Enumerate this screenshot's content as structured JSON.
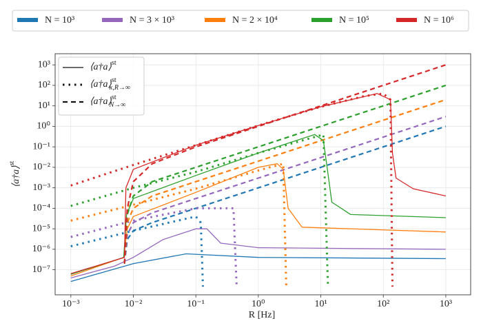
{
  "chart_data": {
    "type": "line",
    "x_label": "R [Hz]",
    "y_label": {
      "main": "⟨a†a⟩",
      "sup": "st"
    },
    "xscale": "log",
    "yscale": "log",
    "grid": true,
    "xlim": [
      0.00056,
      2500
    ],
    "ylim": [
      6e-09,
      3500
    ],
    "xticks": [
      {
        "value": 0.001,
        "label": "10⁻³"
      },
      {
        "value": 0.01,
        "label": "10⁻²"
      },
      {
        "value": 0.1,
        "label": "10⁻¹"
      },
      {
        "value": 1,
        "label": "10⁰"
      },
      {
        "value": 10,
        "label": "10¹"
      },
      {
        "value": 100,
        "label": "10²"
      },
      {
        "value": 1000,
        "label": "10³"
      }
    ],
    "yticks": [
      {
        "value": 1e-07,
        "label": "10⁻⁷"
      },
      {
        "value": 1e-06,
        "label": "10⁻⁶"
      },
      {
        "value": 1e-05,
        "label": "10⁻⁵"
      },
      {
        "value": 0.0001,
        "label": "10⁻⁴"
      },
      {
        "value": 0.001,
        "label": "10⁻³"
      },
      {
        "value": 0.01,
        "label": "10⁻²"
      },
      {
        "value": 0.1,
        "label": "10⁻¹"
      },
      {
        "value": 1,
        "label": "10⁰"
      },
      {
        "value": 10,
        "label": "10¹"
      },
      {
        "value": 100,
        "label": "10²"
      },
      {
        "value": 1000,
        "label": "10³"
      }
    ],
    "line_styles": [
      {
        "style": "solid",
        "main": "⟨a†a⟩",
        "sup": "st"
      },
      {
        "style": "dotted",
        "main": "⟨a†a⟩",
        "sup": "st",
        "sub": "κ,R→∞"
      },
      {
        "style": "dashed",
        "main": "⟨a†a⟩",
        "sup": "st",
        "sub": "N→∞"
      }
    ],
    "series": [
      {
        "name": "N = 10³",
        "color": "#1f77b4",
        "curves": [
          {
            "style": "solid",
            "x": [
              0.001,
              0.01,
              0.07,
              1,
              1000
            ],
            "values": [
              2.7e-08,
              2e-07,
              6e-07,
              4e-07,
              3.5e-07
            ]
          },
          {
            "style": "dotted",
            "x": [
              0.001,
              0.01,
              0.1,
              0.12,
              0.13
            ],
            "values": [
              1.4e-06,
              8e-06,
              4e-05,
              2e-05,
              1.5e-08
            ]
          },
          {
            "style": "dashed",
            "x": [
              0.0072,
              0.008,
              0.01,
              0.02,
              0.1,
              1,
              10,
              100,
              1000
            ],
            "values": [
              2e-07,
              3e-06,
              8e-06,
              2e-05,
              0.0001,
              0.001,
              0.01,
              0.1,
              1
            ]
          }
        ]
      },
      {
        "name": "N = 3 × 10³",
        "color": "#9467bd",
        "curves": [
          {
            "style": "solid",
            "x": [
              0.001,
              0.005,
              0.01,
              0.03,
              0.1,
              0.15,
              0.25,
              1,
              1000
            ],
            "values": [
              4e-08,
              1.5e-07,
              4e-07,
              3e-06,
              1e-05,
              1e-05,
              2e-06,
              1.2e-06,
              1e-06
            ]
          },
          {
            "style": "dotted",
            "x": [
              0.001,
              0.01,
              0.1,
              0.4,
              0.45
            ],
            "values": [
              4e-06,
              2.5e-05,
              0.0001,
              0.0001,
              1.5e-08
            ]
          },
          {
            "style": "dashed",
            "x": [
              0.0072,
              0.008,
              0.01,
              0.02,
              0.1,
              1,
              10,
              100,
              1000
            ],
            "values": [
              2e-07,
              5e-06,
              2e-05,
              6e-05,
              0.0003,
              0.003,
              0.03,
              0.3,
              3
            ]
          }
        ]
      },
      {
        "name": "N = 2 × 10⁴",
        "color": "#ff7f0e",
        "curves": [
          {
            "style": "solid",
            "x": [
              0.001,
              0.007,
              0.008,
              0.01,
              0.1,
              1,
              2,
              2.5,
              3,
              5,
              1000
            ],
            "values": [
              5e-08,
              4e-07,
              1e-05,
              4e-05,
              0.0006,
              0.01,
              0.015,
              0.008,
              0.0001,
              1.2e-05,
              7e-06
            ]
          },
          {
            "style": "dotted",
            "x": [
              0.001,
              0.01,
              0.1,
              1,
              2.5,
              2.8
            ],
            "values": [
              2.5e-05,
              0.00015,
              0.0009,
              0.007,
              0.015,
              1.5e-08
            ]
          },
          {
            "style": "dashed",
            "x": [
              0.0072,
              0.008,
              0.01,
              0.02,
              0.1,
              1,
              10,
              100,
              1000
            ],
            "values": [
              2e-07,
              2e-05,
              0.0001,
              0.0004,
              0.002,
              0.02,
              0.2,
              2,
              20
            ]
          }
        ]
      },
      {
        "name": "N = 10⁵",
        "color": "#2ca02c",
        "curves": [
          {
            "style": "solid",
            "x": [
              0.001,
              0.007,
              0.0078,
              0.01,
              0.1,
              1,
              8,
              11,
              13,
              15,
              30,
              1000
            ],
            "values": [
              6e-08,
              4e-07,
              5e-05,
              0.0003,
              0.004,
              0.05,
              0.4,
              0.2,
              0.005,
              0.0002,
              5e-05,
              3.5e-05
            ]
          },
          {
            "style": "dotted",
            "x": [
              0.001,
              0.01,
              0.1,
              1,
              11,
              13
            ],
            "values": [
              0.00013,
              0.001,
              0.006,
              0.05,
              0.4,
              1.5e-08
            ]
          },
          {
            "style": "dashed",
            "x": [
              0.0072,
              0.008,
              0.01,
              0.02,
              0.1,
              1,
              10,
              100,
              1000
            ],
            "values": [
              2e-07,
              5e-05,
              0.0004,
              0.002,
              0.01,
              0.1,
              1,
              10,
              100
            ]
          }
        ]
      },
      {
        "name": "N = 10⁶",
        "color": "#d62728",
        "curves": [
          {
            "style": "solid",
            "x": [
              0.001,
              0.0072,
              0.0076,
              0.01,
              0.1,
              1,
              10,
              80,
              130,
              140,
              160,
              300,
              1000
            ],
            "values": [
              6.5e-08,
              4e-07,
              0.001,
              0.008,
              0.12,
              1.1,
              9,
              40,
              20,
              0.05,
              0.003,
              0.0009,
              0.0004
            ]
          },
          {
            "style": "dotted",
            "x": [
              0.001,
              0.01,
              0.1,
              1,
              10,
              50,
              100,
              130,
              140
            ],
            "values": [
              0.0013,
              0.013,
              0.12,
              1.1,
              9,
              30,
              40,
              20,
              1.5e-08
            ]
          },
          {
            "style": "dashed",
            "x": [
              0.0072,
              0.008,
              0.01,
              0.02,
              0.1,
              1,
              10,
              100,
              1000
            ],
            "values": [
              2e-07,
              0.0001,
              0.002,
              0.015,
              0.1,
              1,
              10,
              100,
              1000
            ]
          }
        ]
      }
    ]
  }
}
